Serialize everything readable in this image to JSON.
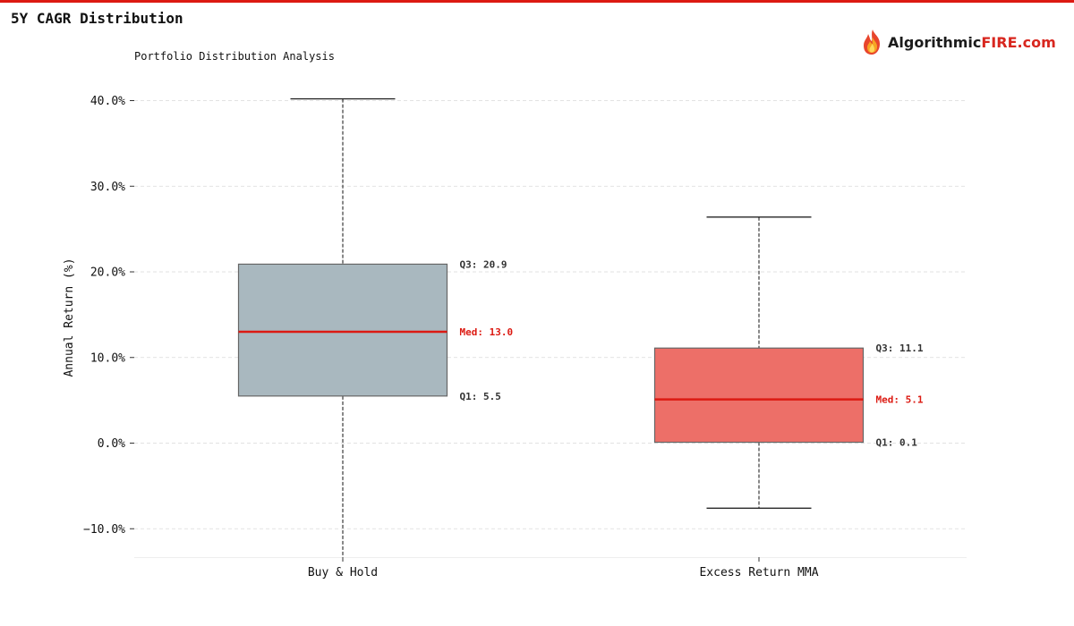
{
  "page": {
    "title": "5Y CAGR Distribution",
    "brand_name_dark": "Algorithmic",
    "brand_name_red": "FIRE.com",
    "accent_color": "#dc1a12"
  },
  "chart_data": {
    "type": "box",
    "title": "Portfolio Distribution Analysis",
    "xlabel": "",
    "ylabel": "Annual Return (%)",
    "ylim": [
      -13.4,
      40.2
    ],
    "y_ticks": [
      -10,
      0,
      10,
      20,
      30,
      40
    ],
    "y_tick_labels": [
      "−10.0%",
      "0.0%",
      "10.0%",
      "20.0%",
      "30.0%",
      "40.0%"
    ],
    "grid": true,
    "categories": [
      "Buy & Hold",
      "Excess Return MMA"
    ],
    "series": [
      {
        "category": "Buy & Hold",
        "whisker_low": -13.4,
        "q1": 5.5,
        "median": 13.0,
        "q3": 20.9,
        "whisker_high": 40.2,
        "color": "#a9b8bf",
        "q1_label": "Q1: 5.5",
        "median_label": "Med: 13.0",
        "q3_label": "Q3: 20.9"
      },
      {
        "category": "Excess Return MMA",
        "whisker_low": -7.6,
        "q1": 0.1,
        "median": 5.1,
        "q3": 11.1,
        "whisker_high": 26.4,
        "color": "#ed6f68",
        "q1_label": "Q1: 0.1",
        "median_label": "Med: 5.1",
        "q3_label": "Q3: 11.1"
      }
    ],
    "median_color": "#dc1a12"
  }
}
